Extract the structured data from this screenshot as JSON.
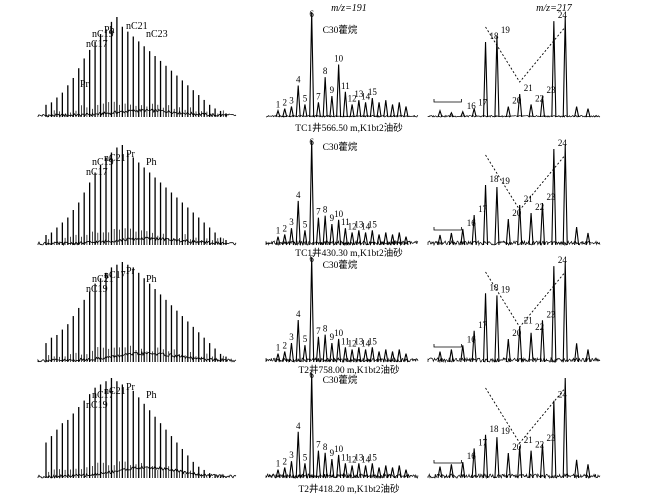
{
  "headers": {
    "left": "",
    "middle": "m/z=191",
    "right": "m/z=217"
  },
  "rows": [
    {
      "caption": "TC1井566.50 m,K1bt2油砂",
      "c30_label": "C30藿烷",
      "alk_labels": [
        "nC19",
        "nC17",
        "Ph",
        "nC21",
        "nC23",
        "Pr"
      ],
      "hop_peaks": [
        "1",
        "2",
        "3",
        "4",
        "5",
        "6",
        "7",
        "8",
        "9",
        "10",
        "11",
        "12",
        "13",
        "14",
        "15"
      ],
      "ster_peaks": [
        "16",
        "17",
        "18",
        "19",
        "20",
        "21",
        "22",
        "23",
        "24"
      ]
    },
    {
      "caption": "TC1井430.30 m,K1bt2油砂",
      "c30_label": "C30藿烷",
      "alk_labels": [
        "nC19",
        "nC17",
        "nC21",
        "Pr",
        "Ph"
      ],
      "hop_peaks": [
        "1",
        "2",
        "3",
        "4",
        "5",
        "6",
        "7",
        "8",
        "9",
        "10",
        "11",
        "12",
        "13",
        "14",
        "15"
      ],
      "ster_peaks": [
        "16",
        "17",
        "18",
        "19",
        "20",
        "21",
        "22",
        "23",
        "24"
      ]
    },
    {
      "caption": "T2井758.00 m,K1bt2油砂",
      "c30_label": "C30藿烷",
      "alk_labels": [
        "nC21",
        "nC19",
        "nC17",
        "Pr",
        "Ph"
      ],
      "hop_peaks": [
        "1",
        "2",
        "3",
        "4",
        "5",
        "6",
        "7",
        "8",
        "9",
        "10",
        "11",
        "12",
        "13",
        "14",
        "15"
      ],
      "ster_peaks": [
        "16",
        "17",
        "18",
        "19",
        "20",
        "21",
        "22",
        "23",
        "24"
      ]
    },
    {
      "caption": "T2井418.20 m,K1bt2油砂",
      "c30_label": "C30藿烷",
      "alk_labels": [
        "nC17",
        "nC19",
        "nC21",
        "Pr",
        "Ph"
      ],
      "hop_peaks": [
        "1",
        "2",
        "3",
        "4",
        "5",
        "6",
        "7",
        "8",
        "9",
        "10",
        "11",
        "12",
        "13",
        "14",
        "15"
      ],
      "ster_peaks": [
        "16",
        "17",
        "18",
        "19",
        "20",
        "21",
        "22",
        "23",
        "24"
      ]
    }
  ],
  "chart_data": {
    "type": "line",
    "title": "",
    "panels": [
      {
        "row": 1,
        "column": "n-alkanes",
        "series": [
          {
            "values": [
              10,
              12,
              16,
              20,
              26,
              32,
              40,
              48,
              55,
              62,
              68,
              72,
              78,
              82,
              74,
              70,
              66,
              62,
              58,
              54,
              50,
              46,
              42,
              38,
              34,
              30,
              26,
              22,
              18,
              14,
              10,
              7,
              5,
              3
            ]
          }
        ]
      },
      {
        "row": 1,
        "column": "m/z=191",
        "series": [
          {
            "values": [
              6,
              8,
              10,
              30,
              12,
              100,
              14,
              38,
              20,
              50,
              24,
              12,
              16,
              14,
              18,
              14,
              16,
              12,
              14,
              10
            ]
          }
        ]
      },
      {
        "row": 1,
        "column": "m/z=217",
        "series": [
          {
            "values": [
              6,
              4,
              5,
              8,
              72,
              78,
              10,
              22,
              12,
              20,
              92,
              96,
              10,
              8
            ]
          }
        ]
      },
      {
        "row": 2,
        "column": "n-alkanes",
        "series": [
          {
            "values": [
              8,
              10,
              14,
              18,
              22,
              28,
              34,
              42,
              50,
              58,
              64,
              70,
              74,
              78,
              80,
              74,
              70,
              66,
              62,
              58,
              54,
              50,
              46,
              42,
              38,
              34,
              30,
              26,
              22,
              18,
              14,
              10,
              6,
              4
            ]
          }
        ]
      },
      {
        "row": 2,
        "column": "m/z=191",
        "series": [
          {
            "values": [
              8,
              10,
              16,
              42,
              14,
              100,
              26,
              28,
              20,
              24,
              16,
              12,
              14,
              12,
              14,
              10,
              12,
              10,
              12,
              8
            ]
          }
        ]
      },
      {
        "row": 2,
        "column": "m/z=217",
        "series": [
          {
            "values": [
              10,
              12,
              16,
              30,
              60,
              58,
              26,
              40,
              32,
              42,
              96,
              100,
              18,
              12
            ]
          }
        ]
      },
      {
        "row": 3,
        "column": "n-alkanes",
        "series": [
          {
            "values": [
              14,
              18,
              20,
              24,
              28,
              34,
              40,
              46,
              52,
              58,
              62,
              66,
              70,
              72,
              74,
              72,
              70,
              66,
              62,
              58,
              54,
              50,
              46,
              42,
              38,
              34,
              30,
              26,
              22,
              18,
              14,
              10,
              6,
              4
            ]
          }
        ]
      },
      {
        "row": 3,
        "column": "m/z=191",
        "series": [
          {
            "values": [
              8,
              10,
              18,
              40,
              16,
              100,
              24,
              26,
              18,
              22,
              14,
              12,
              14,
              12,
              14,
              10,
              12,
              10,
              12,
              8
            ]
          }
        ]
      },
      {
        "row": 3,
        "column": "m/z=217",
        "series": [
          {
            "values": [
              10,
              12,
              16,
              30,
              66,
              64,
              22,
              34,
              28,
              40,
              92,
              96,
              18,
              12
            ]
          }
        ]
      },
      {
        "row": 4,
        "column": "n-alkanes",
        "series": [
          {
            "values": [
              22,
              26,
              30,
              34,
              36,
              40,
              44,
              48,
              52,
              56,
              58,
              60,
              62,
              60,
              58,
              56,
              54,
              50,
              46,
              42,
              38,
              34,
              30,
              26,
              22,
              18,
              14,
              10,
              7,
              5,
              3,
              2,
              1,
              1
            ]
          }
        ]
      },
      {
        "row": 4,
        "column": "m/z=191",
        "series": [
          {
            "values": [
              8,
              10,
              16,
              44,
              14,
              100,
              26,
              24,
              18,
              22,
              14,
              12,
              14,
              12,
              14,
              10,
              12,
              10,
              12,
              8
            ]
          }
        ]
      },
      {
        "row": 4,
        "column": "m/z=217",
        "series": [
          {
            "values": [
              10,
              12,
              14,
              26,
              38,
              36,
              22,
              28,
              24,
              30,
              68,
              88,
              16,
              12
            ]
          }
        ]
      }
    ]
  }
}
